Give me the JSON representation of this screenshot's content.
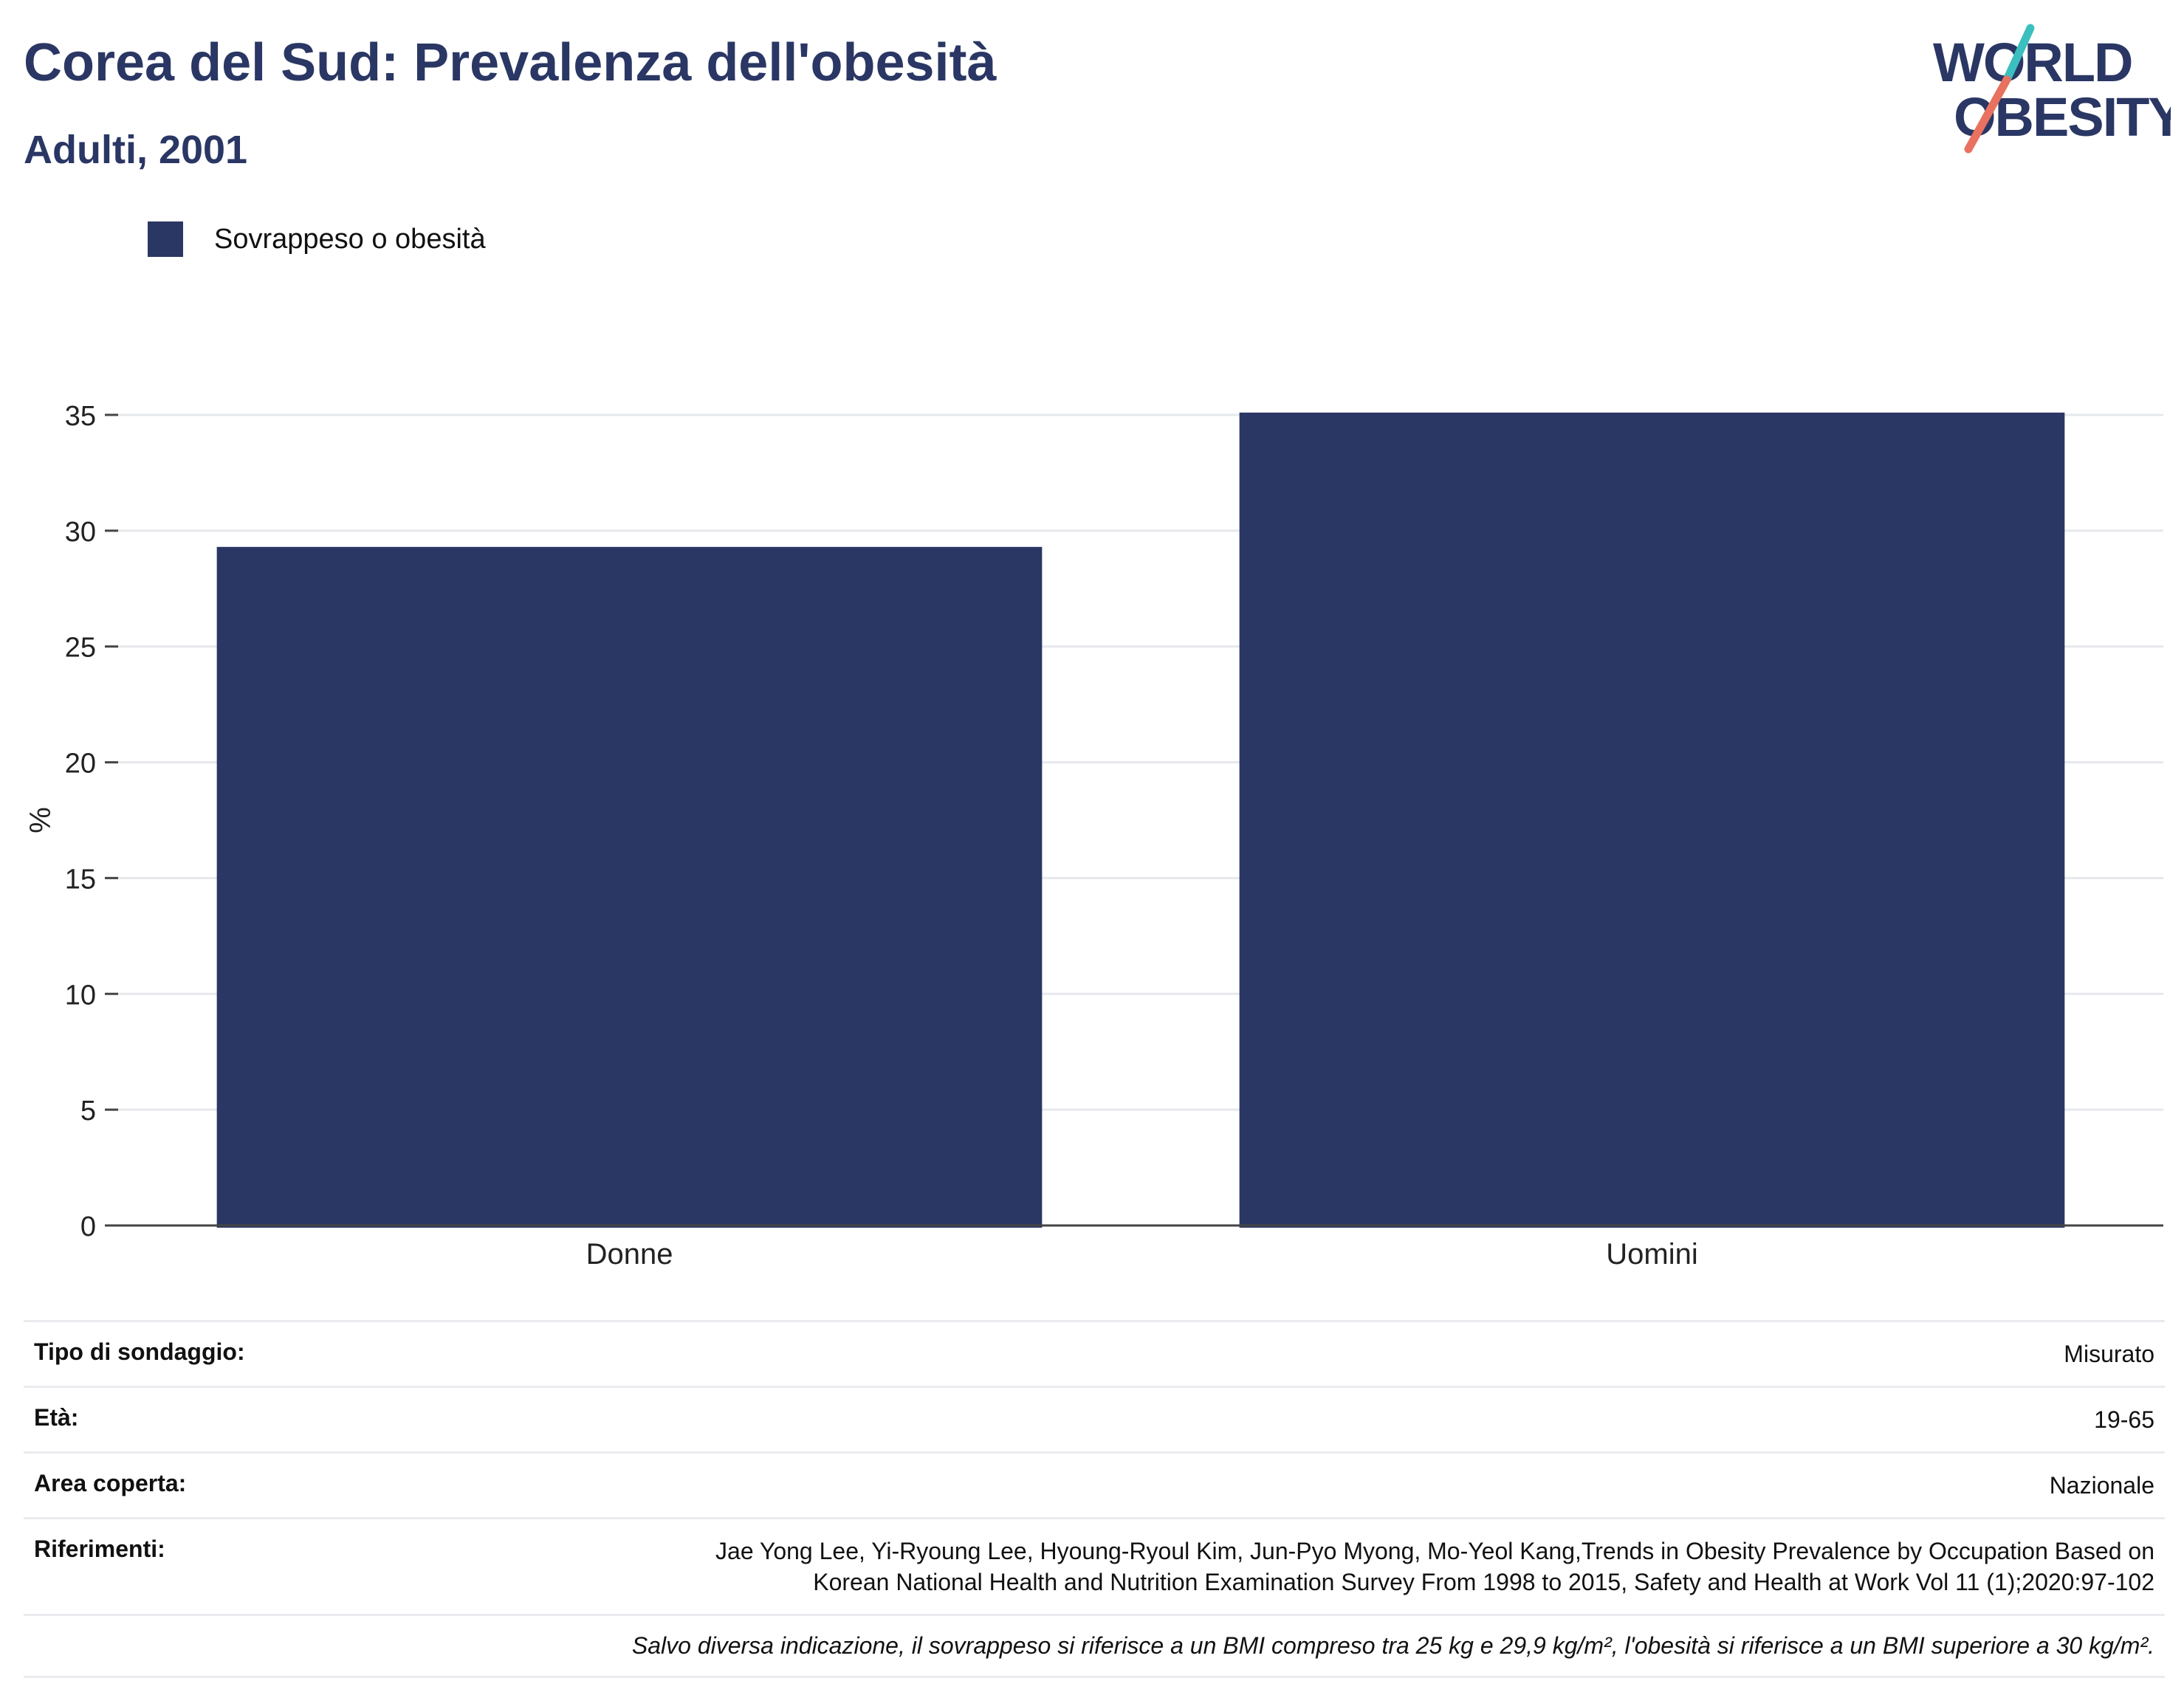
{
  "header": {
    "title": "Corea del Sud: Prevalenza dell'obesità",
    "subtitle": "Adulti, 2001"
  },
  "logo": {
    "line1": "WORLD",
    "line2": "OBESITY",
    "colors": {
      "text": "#2a3764",
      "stripe_top": "#3bbfbf",
      "stripe_bottom": "#e8715f"
    }
  },
  "chart_data": {
    "type": "bar",
    "categories": [
      "Donne",
      "Uomini"
    ],
    "series": [
      {
        "name": "Sovrappeso o obesità",
        "values": [
          29.3,
          35.1
        ],
        "color": "#2a3764"
      }
    ],
    "title": "Corea del Sud: Prevalenza dell'obesità",
    "subtitle": "Adulti, 2001",
    "xlabel": "",
    "ylabel": "%",
    "ylim": [
      0,
      35
    ],
    "yticks": [
      0,
      5,
      10,
      15,
      20,
      25,
      30,
      35
    ],
    "grid": true,
    "legend_position": "top-left"
  },
  "info": {
    "rows": [
      {
        "label": "Tipo di sondaggio:",
        "value": "Misurato"
      },
      {
        "label": "Età:",
        "value": "19-65"
      },
      {
        "label": "Area coperta:",
        "value": "Nazionale"
      },
      {
        "label": "Riferimenti:",
        "value_lines": [
          "Jae Yong Lee, Yi-Ryoung Lee, Hyoung-Ryoul Kim, Jun-Pyo Myong, Mo-Yeol Kang,Trends in Obesity Prevalence by Occupation Based on",
          "Korean National Health and Nutrition Examination Survey From 1998 to 2015, Safety and Health at Work Vol 11 (1);2020:97-102"
        ]
      }
    ],
    "note": "Salvo diversa indicazione, il sovrappeso si riferisce a un BMI compreso tra 25 kg e 29,9 kg/m², l'obesità si riferisce a un BMI superiore a 30 kg/m²."
  }
}
